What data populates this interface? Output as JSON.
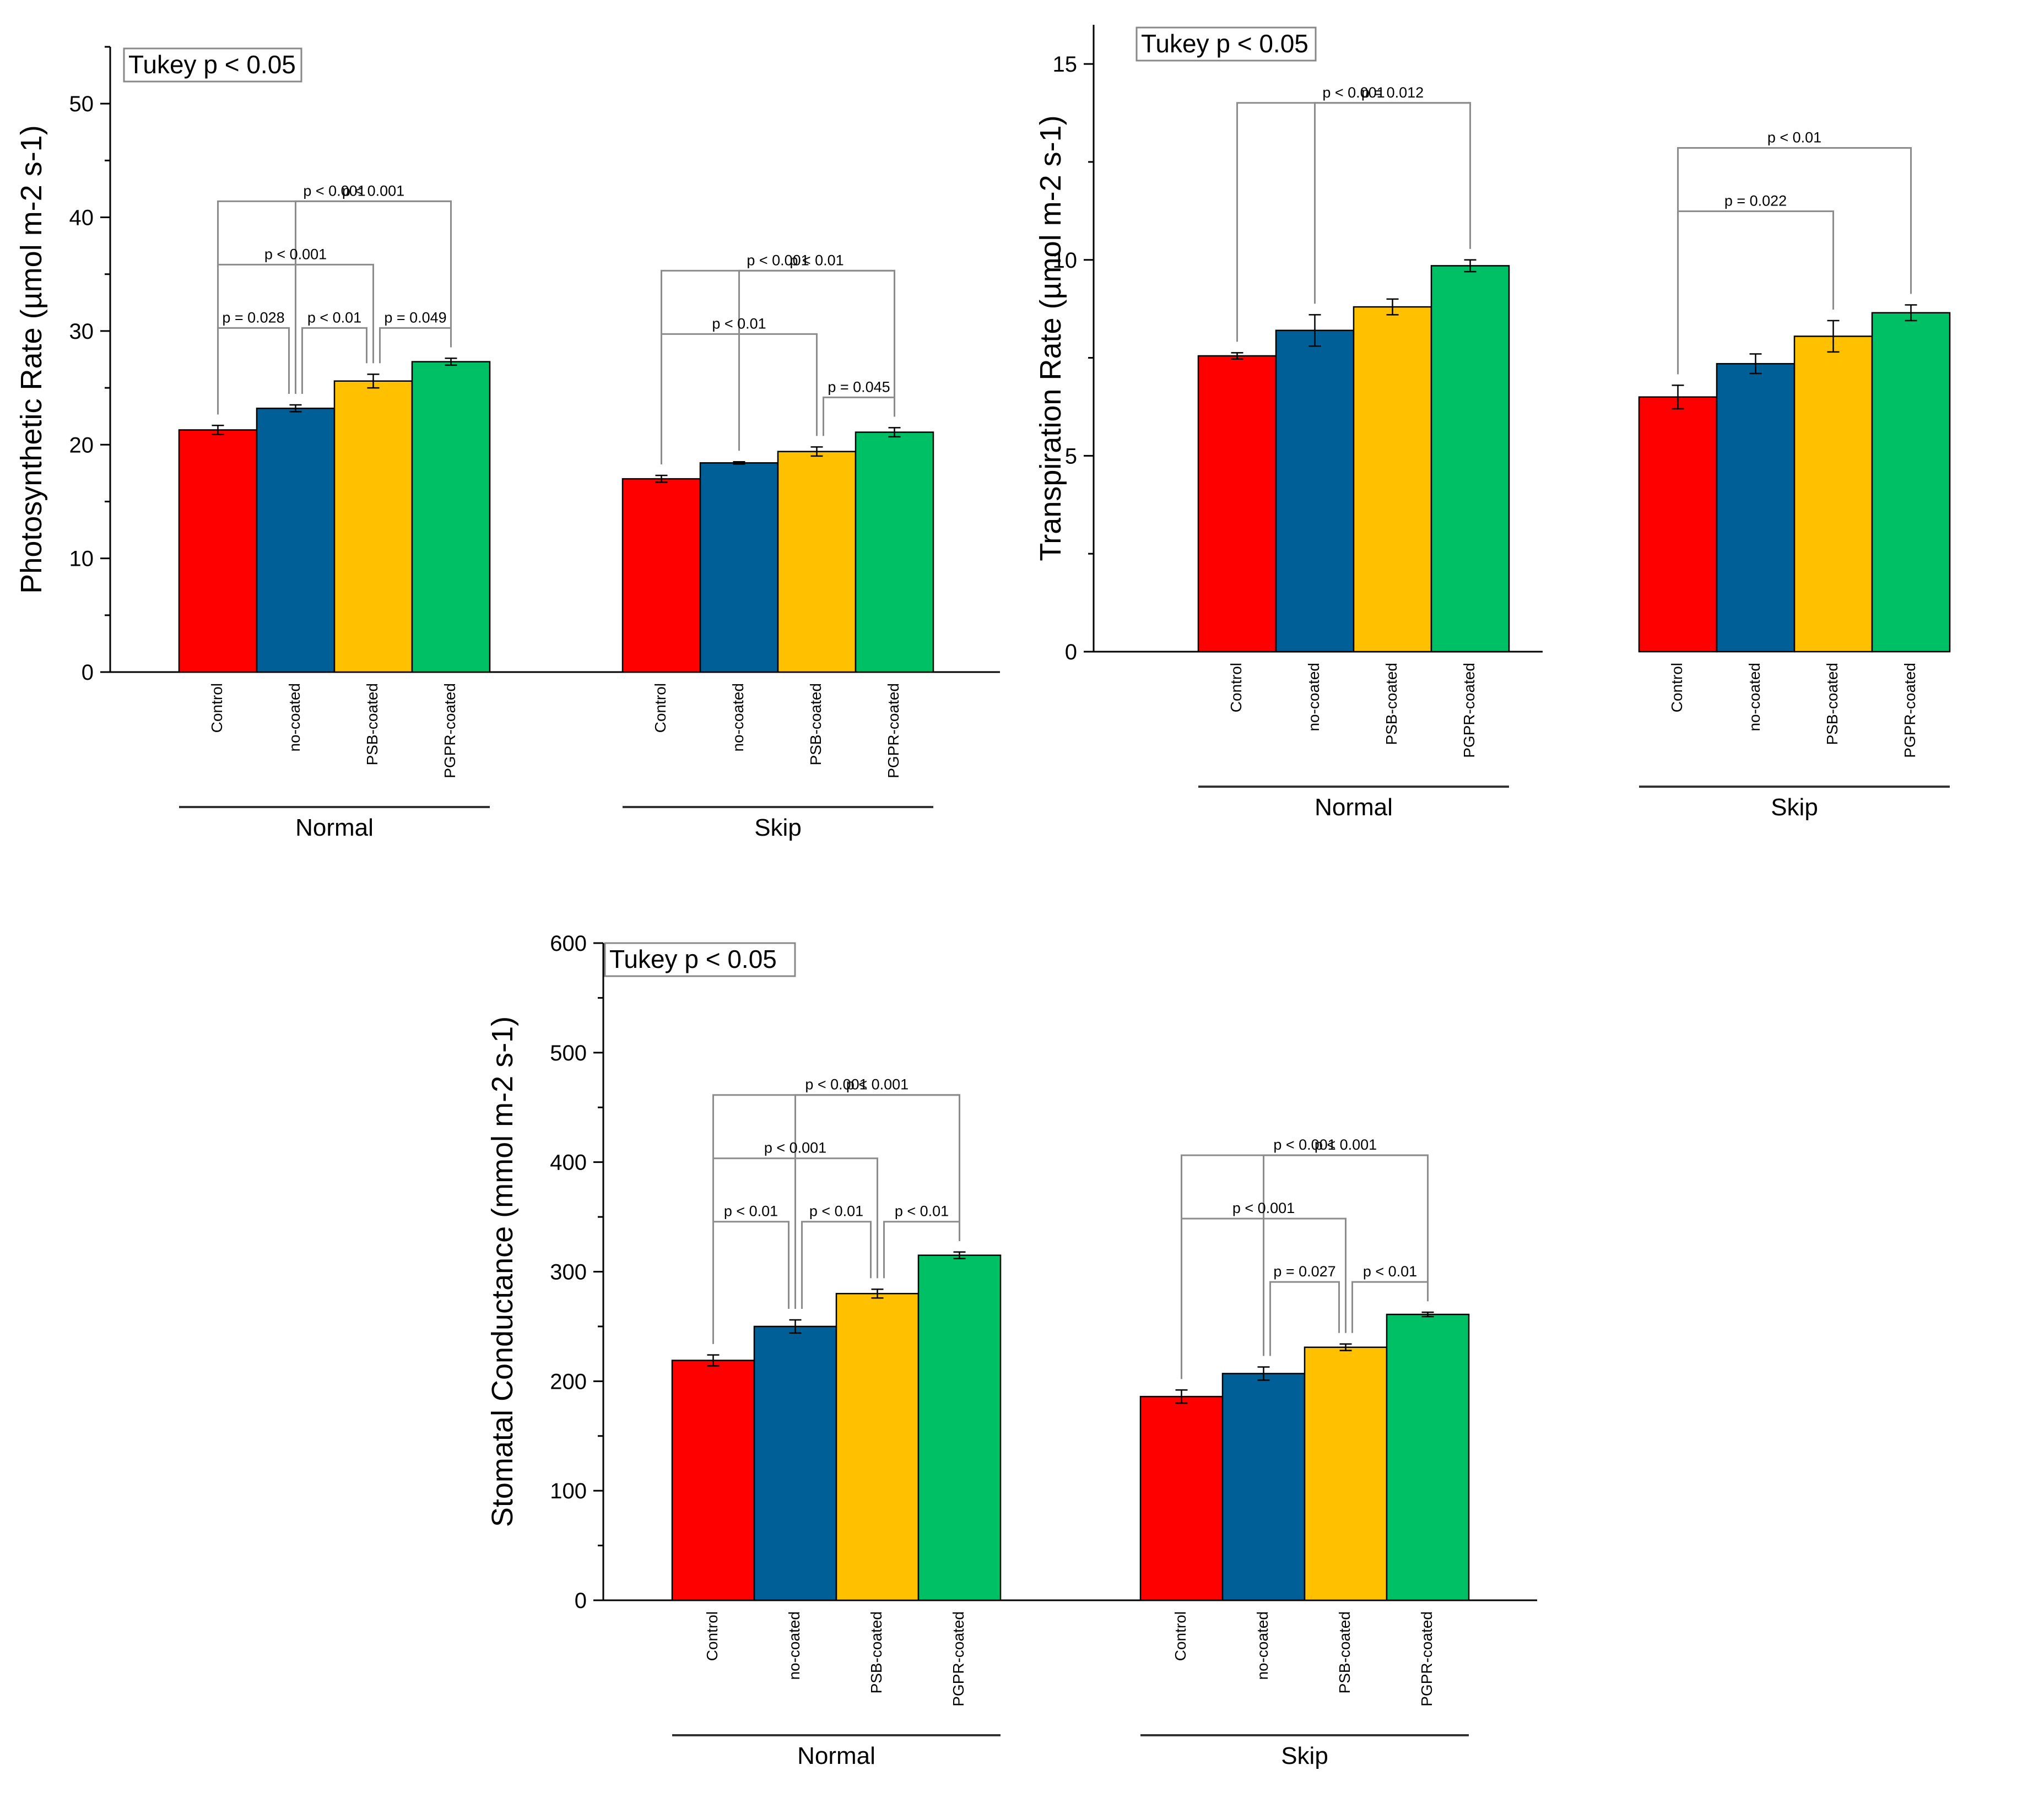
{
  "colors": {
    "Control": "#ff0000",
    "no-coated": "#005f96",
    "PSB-coated": "#ffc000",
    "PGPR-coated": "#00c066"
  },
  "chart_data": [
    {
      "type": "bar",
      "ylabel": "Photosynthetic Rate (µmol m-2 s-1)",
      "legend": "Tukey p < 0.05",
      "ylim": [
        0,
        55
      ],
      "yticks": [
        0,
        10,
        20,
        30,
        40,
        50
      ],
      "categories": [
        "Control",
        "no-coated",
        "PSB-coated",
        "PGPR-coated"
      ],
      "groups": [
        {
          "name": "Normal",
          "values": [
            21.3,
            23.2,
            25.6,
            27.3
          ],
          "errors": [
            0.4,
            0.3,
            0.6,
            0.3
          ],
          "comparisons": [
            {
              "from": 0,
              "to": 3,
              "label": "p < 0.001"
            },
            {
              "from": 1,
              "to": 3,
              "label": "p < 0.001"
            },
            {
              "from": 0,
              "to": 2,
              "label": "p < 0.001"
            },
            {
              "from": 0,
              "to": 1,
              "label": "p = 0.028"
            },
            {
              "from": 1,
              "to": 2,
              "label": "p < 0.01"
            },
            {
              "from": 2,
              "to": 3,
              "label": "p = 0.049"
            }
          ]
        },
        {
          "name": "Skip",
          "values": [
            17.0,
            18.4,
            19.4,
            21.1
          ],
          "errors": [
            0.3,
            0.1,
            0.4,
            0.4
          ],
          "comparisons": [
            {
              "from": 0,
              "to": 3,
              "label": "p < 0.001"
            },
            {
              "from": 1,
              "to": 3,
              "label": "p < 0.01"
            },
            {
              "from": 0,
              "to": 2,
              "label": "p < 0.01"
            },
            {
              "from": 2,
              "to": 3,
              "label": "p = 0.045"
            }
          ]
        }
      ]
    },
    {
      "type": "bar",
      "ylabel": "Transpiration Rate (µmol m-2 s-1)",
      "legend": "Tukey p < 0.05",
      "ylim": [
        0,
        16
      ],
      "yticks": [
        0,
        5,
        10,
        15
      ],
      "categories": [
        "Control",
        "no-coated",
        "PSB-coated",
        "PGPR-coated"
      ],
      "groups": [
        {
          "name": "Normal",
          "values": [
            7.55,
            8.2,
            8.8,
            9.85
          ],
          "errors": [
            0.08,
            0.4,
            0.2,
            0.15
          ],
          "comparisons": [
            {
              "from": 0,
              "to": 3,
              "label": "p < 0.001"
            },
            {
              "from": 1,
              "to": 3,
              "label": "p = 0.012"
            }
          ]
        },
        {
          "name": "Skip",
          "values": [
            6.5,
            7.35,
            8.05,
            8.65
          ],
          "errors": [
            0.3,
            0.25,
            0.4,
            0.2
          ],
          "comparisons": [
            {
              "from": 0,
              "to": 3,
              "label": "p < 0.01"
            },
            {
              "from": 0,
              "to": 2,
              "label": "p = 0.022"
            }
          ]
        }
      ]
    },
    {
      "type": "bar",
      "ylabel": "Stomatal Conductance (mmol m-2 s-1)",
      "legend": "Tukey p < 0.05",
      "ylim": [
        0,
        600
      ],
      "yticks": [
        0,
        100,
        200,
        300,
        400,
        500,
        600
      ],
      "categories": [
        "Control",
        "no-coated",
        "PSB-coated",
        "PGPR-coated"
      ],
      "groups": [
        {
          "name": "Normal",
          "values": [
            219,
            250,
            280,
            315
          ],
          "errors": [
            5,
            6,
            4,
            3
          ],
          "comparisons": [
            {
              "from": 0,
              "to": 3,
              "label": "p < 0.001"
            },
            {
              "from": 1,
              "to": 3,
              "label": "p < 0.001"
            },
            {
              "from": 0,
              "to": 2,
              "label": "p < 0.001"
            },
            {
              "from": 0,
              "to": 1,
              "label": "p < 0.01"
            },
            {
              "from": 1,
              "to": 2,
              "label": "p < 0.01"
            },
            {
              "from": 2,
              "to": 3,
              "label": "p < 0.01"
            }
          ]
        },
        {
          "name": "Skip",
          "values": [
            186,
            207,
            231,
            261
          ],
          "errors": [
            6,
            6,
            3,
            2
          ],
          "comparisons": [
            {
              "from": 0,
              "to": 3,
              "label": "p < 0.001"
            },
            {
              "from": 1,
              "to": 3,
              "label": "p < 0.001"
            },
            {
              "from": 0,
              "to": 2,
              "label": "p < 0.001"
            },
            {
              "from": 1,
              "to": 2,
              "label": "p = 0.027"
            },
            {
              "from": 2,
              "to": 3,
              "label": "p < 0.01"
            }
          ]
        }
      ]
    }
  ]
}
